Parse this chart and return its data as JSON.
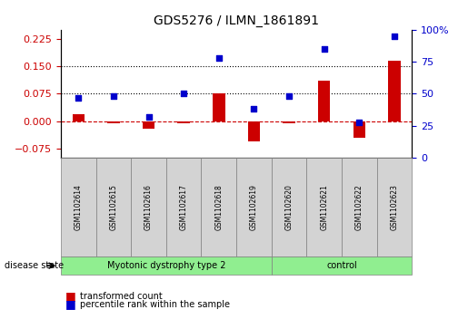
{
  "title": "GDS5276 / ILMN_1861891",
  "samples": [
    "GSM1102614",
    "GSM1102615",
    "GSM1102616",
    "GSM1102617",
    "GSM1102618",
    "GSM1102619",
    "GSM1102620",
    "GSM1102621",
    "GSM1102622",
    "GSM1102623"
  ],
  "transformed_count": [
    0.02,
    -0.005,
    -0.02,
    -0.005,
    0.075,
    -0.055,
    -0.005,
    0.11,
    -0.045,
    0.165
  ],
  "percentile_rank": [
    47,
    48,
    32,
    50,
    78,
    38,
    48,
    85,
    28,
    95
  ],
  "disease_groups": [
    {
      "label": "Myotonic dystrophy type 2",
      "start": 0,
      "end": 5,
      "color": "#90EE90"
    },
    {
      "label": "control",
      "start": 6,
      "end": 9,
      "color": "#90EE90"
    }
  ],
  "group_separators": [
    5.5
  ],
  "ylim_left": [
    -0.1,
    0.25
  ],
  "ylim_right": [
    0,
    100
  ],
  "yticks_left": [
    -0.075,
    0,
    0.075,
    0.15,
    0.225
  ],
  "yticks_right": [
    0,
    25,
    50,
    75,
    100
  ],
  "hlines": [
    0.075,
    0.15
  ],
  "red_color": "#CC0000",
  "blue_color": "#0000CC",
  "bar_width": 0.35,
  "marker_size": 7
}
